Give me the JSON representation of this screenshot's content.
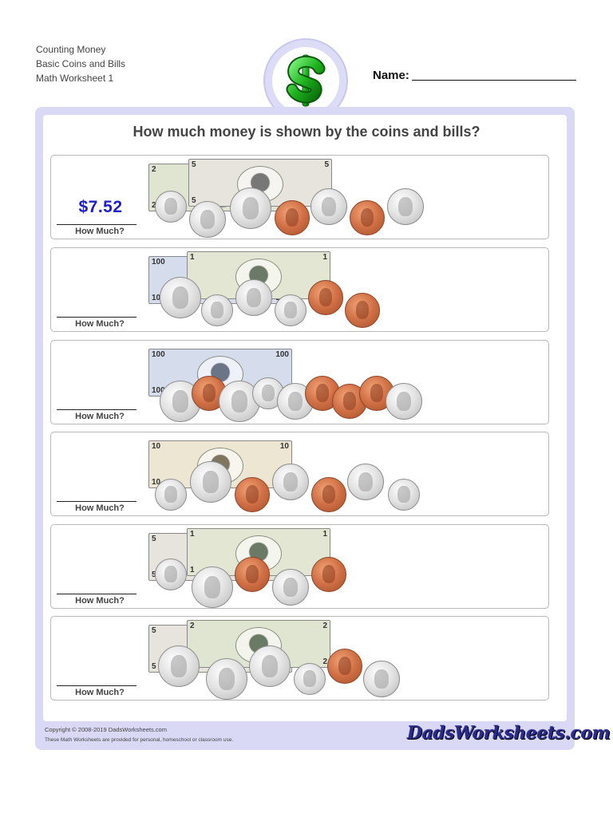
{
  "header": {
    "line1": "Counting Money",
    "line2": "Basic Coins and Bills",
    "line3": "Math Worksheet 1",
    "name_label": "Name:",
    "logo_icon": "dollar-sign-icon"
  },
  "title": "How much money is shown by the coins and bills?",
  "how_much_label": "How Much?",
  "problems": [
    {
      "answer": "$7.52",
      "bills": [
        "two-dollar-bill",
        "five-dollar-bill"
      ],
      "coins": [
        "dime",
        "nickel",
        "quarter",
        "penny",
        "nickel",
        "penny",
        "nickel"
      ]
    },
    {
      "answer": "",
      "bills": [
        "hundred-dollar-bill",
        "one-dollar-bill"
      ],
      "coins": [
        "quarter",
        "dime",
        "nickel",
        "dime",
        "penny",
        "penny"
      ]
    },
    {
      "answer": "",
      "bills": [
        "hundred-dollar-bill"
      ],
      "coins": [
        "quarter",
        "penny",
        "quarter",
        "dime",
        "nickel",
        "penny",
        "penny",
        "penny",
        "nickel"
      ]
    },
    {
      "answer": "",
      "bills": [
        "ten-dollar-bill"
      ],
      "coins": [
        "dime",
        "quarter",
        "penny",
        "nickel",
        "penny",
        "nickel",
        "dime"
      ]
    },
    {
      "answer": "",
      "bills": [
        "five-dollar-bill",
        "one-dollar-bill"
      ],
      "coins": [
        "dime",
        "quarter",
        "penny",
        "nickel",
        "penny"
      ]
    },
    {
      "answer": "",
      "bills": [
        "five-dollar-bill",
        "two-dollar-bill"
      ],
      "coins": [
        "quarter",
        "quarter",
        "quarter",
        "dime",
        "penny",
        "nickel"
      ]
    }
  ],
  "footer": {
    "copyright": "Copyright © 2008-2019 DadsWorksheets.com",
    "note": "These Math Worksheets are provided for personal, homeschool or classroom use.",
    "brand": "DadsWorksheets.com"
  },
  "colors": {
    "answer": "#1e1ec8",
    "frame": "#d9d9f5",
    "dollar_green": "#1db21d",
    "penny": "#d06f45",
    "silver": "#c8c8c8"
  }
}
